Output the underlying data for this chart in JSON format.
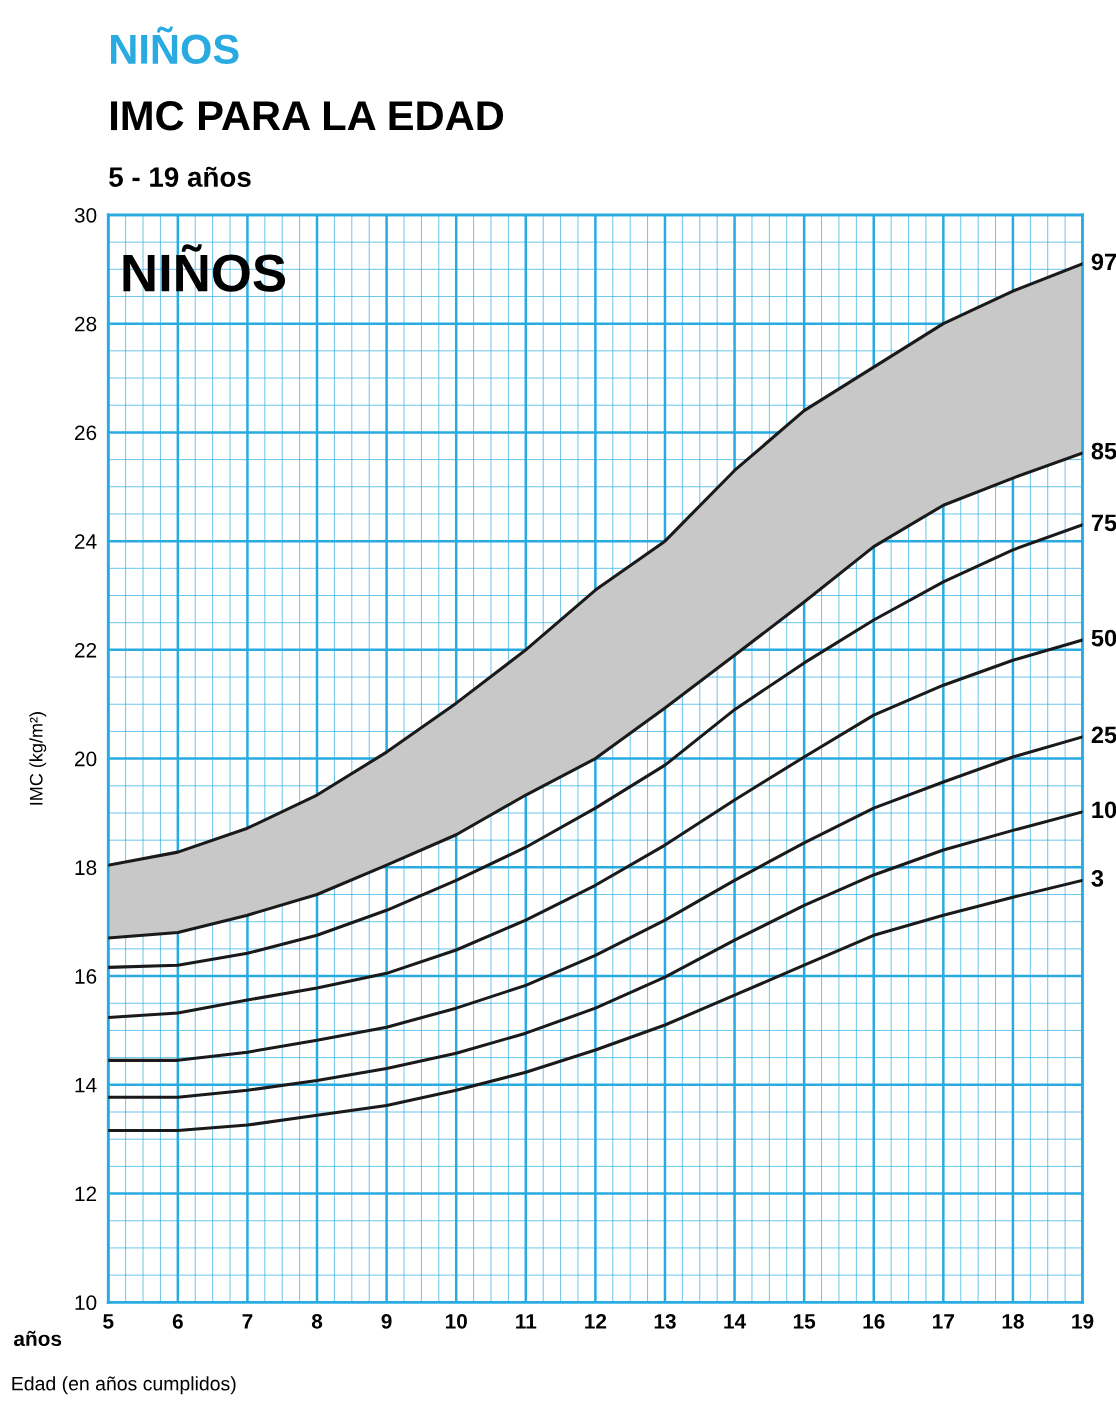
{
  "chart_data": {
    "type": "line",
    "title": "NIÑOS",
    "subtitle": "IMC PARA LA EDAD",
    "annotations": [
      "5 - 19 años",
      "NIÑOS",
      "años"
    ],
    "xlabel": "Edad (en años cumplidos)",
    "ylabel": "IMC (kg/m²)",
    "x": [
      5,
      6,
      7,
      8,
      9,
      10,
      11,
      12,
      13,
      14,
      15,
      16,
      17,
      18,
      19
    ],
    "series": [
      {
        "name": "97",
        "color": "#1a1a1a",
        "values": [
          18.04,
          18.28,
          18.72,
          19.33,
          20.12,
          21.02,
          22.0,
          23.1,
          24.0,
          25.3,
          26.4,
          27.2,
          28.0,
          28.6,
          29.1
        ],
        "lower": [
          16.7,
          16.8,
          17.12,
          17.5,
          18.04,
          18.6,
          19.33,
          20.0,
          20.93,
          21.9,
          22.88,
          23.9,
          24.66,
          25.16,
          25.62
        ],
        "upper": [
          18.04,
          18.28,
          18.72,
          19.33,
          20.12,
          21.02,
          22.0,
          23.1,
          24.0,
          25.3,
          26.4,
          27.2,
          28.0,
          28.6,
          29.1
        ]
      },
      {
        "name": "85",
        "color": "#1a1a1a",
        "values": [
          16.7,
          16.8,
          17.12,
          17.5,
          18.04,
          18.6,
          19.33,
          20.0,
          20.93,
          21.9,
          22.88,
          23.9,
          24.66,
          25.16,
          25.62
        ]
      },
      {
        "name": "75",
        "color": "#1a1a1a",
        "values": [
          16.16,
          16.2,
          16.42,
          16.75,
          17.21,
          17.76,
          18.37,
          19.09,
          19.88,
          20.9,
          21.76,
          22.55,
          23.25,
          23.84,
          24.3
        ]
      },
      {
        "name": "50",
        "color": "#1a1a1a",
        "values": [
          15.24,
          15.32,
          15.56,
          15.78,
          16.05,
          16.48,
          17.03,
          17.67,
          18.41,
          19.24,
          20.03,
          20.8,
          21.35,
          21.81,
          22.18
        ]
      },
      {
        "name": "25",
        "color": "#1a1a1a",
        "values": [
          14.45,
          14.45,
          14.6,
          14.82,
          15.06,
          15.41,
          15.83,
          16.38,
          17.03,
          17.76,
          18.45,
          19.09,
          19.57,
          20.03,
          20.4
        ]
      },
      {
        "name": "10",
        "color": "#1a1a1a",
        "values": [
          13.77,
          13.77,
          13.9,
          14.08,
          14.3,
          14.58,
          14.95,
          15.41,
          15.98,
          16.66,
          17.3,
          17.86,
          18.32,
          18.68,
          19.02
        ]
      },
      {
        "name": "3",
        "color": "#1a1a1a",
        "values": [
          13.16,
          13.16,
          13.26,
          13.44,
          13.62,
          13.9,
          14.23,
          14.64,
          15.1,
          15.65,
          16.2,
          16.75,
          17.12,
          17.45,
          17.76
        ]
      }
    ],
    "xlim": [
      5,
      19
    ],
    "xticks": [
      5,
      6,
      7,
      8,
      9,
      10,
      11,
      12,
      13,
      14,
      15,
      16,
      17,
      18,
      19,
      {
        "value": 5.25,
        "label": null
      },
      {
        "value": 5.5,
        "label": null
      },
      {
        "value": 5.75,
        "label": null
      },
      {
        "value": 6.25,
        "label": null
      },
      {
        "value": 6.5,
        "label": null
      },
      {
        "value": 6.75,
        "label": null
      },
      {
        "value": 7.25,
        "label": null
      },
      {
        "value": 7.5,
        "label": null
      },
      {
        "value": 7.75,
        "label": null
      },
      {
        "value": 8.25,
        "label": null
      },
      {
        "value": 8.5,
        "label": null
      },
      {
        "value": 8.75,
        "label": null
      },
      {
        "value": 9.25,
        "label": null
      },
      {
        "value": 9.5,
        "label": null
      },
      {
        "value": 9.75,
        "label": null
      },
      {
        "value": 10.25,
        "label": null
      },
      {
        "value": 10.5,
        "label": null
      },
      {
        "value": 10.75,
        "label": null
      },
      {
        "value": 11.25,
        "label": null
      },
      {
        "value": 11.5,
        "label": null
      },
      {
        "value": 11.75,
        "label": null
      },
      {
        "value": 12.25,
        "label": null
      },
      {
        "value": 12.5,
        "label": null
      },
      {
        "value": 12.75,
        "label": null
      },
      {
        "value": 13.25,
        "label": null
      },
      {
        "value": 13.5,
        "label": null
      },
      {
        "value": 13.75,
        "label": null
      },
      {
        "value": 14.25,
        "label": null
      },
      {
        "value": 14.5,
        "label": null
      },
      {
        "value": 14.75,
        "label": null
      },
      {
        "value": 15.25,
        "label": null
      },
      {
        "value": 15.5,
        "label": null
      },
      {
        "value": 15.75,
        "label": null
      },
      {
        "value": 16.25,
        "label": null
      },
      {
        "value": 16.5,
        "label": null
      },
      {
        "value": 16.75,
        "label": null
      },
      {
        "value": 17.25,
        "label": null
      },
      {
        "value": 17.5,
        "label": null
      },
      {
        "value": 17.75,
        "label": null
      },
      {
        "value": 18.25,
        "label": null
      },
      {
        "value": 18.5,
        "label": null
      },
      {
        "value": 18.75,
        "label": null
      }
    ],
    "ylim": [
      10,
      30
    ],
    "yticks": [
      10,
      12,
      14,
      16,
      18,
      20,
      22,
      24,
      26,
      28,
      30,
      {
        "value": 10.5,
        "label": null
      },
      {
        "value": 11,
        "label": null
      },
      {
        "value": 11.5,
        "label": null
      },
      {
        "value": 12.5,
        "label": null
      },
      {
        "value": 13,
        "label": null
      },
      {
        "value": 13.5,
        "label": null
      },
      {
        "value": 14.5,
        "label": null
      },
      {
        "value": 15,
        "label": null
      },
      {
        "value": 15.5,
        "label": null
      },
      {
        "value": 16.5,
        "label": null
      },
      {
        "value": 17,
        "label": null
      },
      {
        "value": 17.5,
        "label": null
      },
      {
        "value": 18.5,
        "label": null
      },
      {
        "value": 19,
        "label": null
      },
      {
        "value": 19.5,
        "label": null
      },
      {
        "value": 20.5,
        "label": null
      },
      {
        "value": 21,
        "label": null
      },
      {
        "value": 21.5,
        "label": null
      },
      {
        "value": 22.5,
        "label": null
      },
      {
        "value": 23,
        "label": null
      },
      {
        "value": 23.5,
        "label": null
      },
      {
        "value": 24.5,
        "label": null
      },
      {
        "value": 25,
        "label": null
      },
      {
        "value": 25.5,
        "label": null
      },
      {
        "value": 26.5,
        "label": null
      },
      {
        "value": 27,
        "label": null
      },
      {
        "value": 27.5,
        "label": null
      },
      {
        "value": 28.5,
        "label": null
      },
      {
        "value": 29,
        "label": null
      },
      {
        "value": 29.5,
        "label": null
      }
    ],
    "grid": true,
    "legend": false,
    "marker": "none",
    "line_style": "solid"
  }
}
